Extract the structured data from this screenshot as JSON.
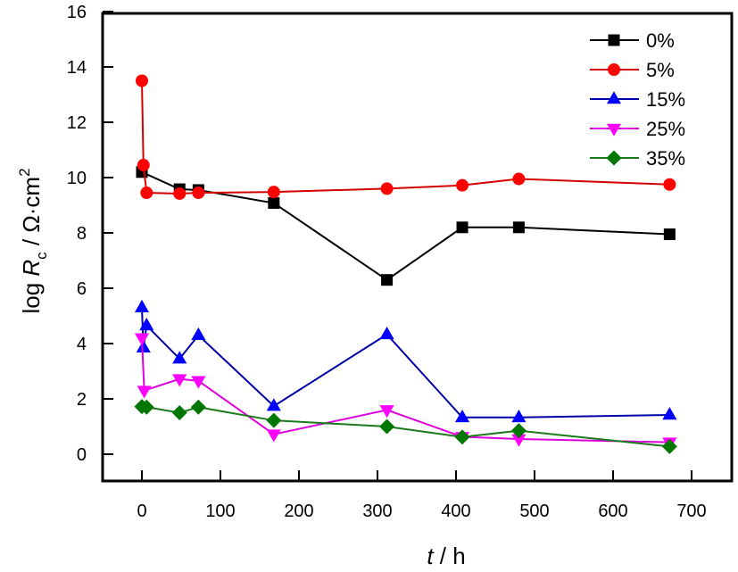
{
  "chart_data": {
    "type": "line",
    "title": "",
    "xlabel": "t / h",
    "xlabel_parts": {
      "var": "t",
      "rest": " / h"
    },
    "ylabel": "log Rc / Ω·cm²",
    "ylabel_parts": {
      "prefix": "log ",
      "var": "R",
      "sub": "c",
      "unit": " / Ω·cm",
      "sup": "2"
    },
    "xlim": [
      -50,
      750
    ],
    "ylim": [
      -1,
      16
    ],
    "xticks": [
      0,
      100,
      200,
      300,
      400,
      500,
      600,
      700
    ],
    "yticks": [
      0,
      2,
      4,
      6,
      8,
      10,
      12,
      14,
      16
    ],
    "grid": false,
    "legend_position": "top-right",
    "series": [
      {
        "name": "0%",
        "color": "#000000",
        "marker": "square",
        "points": [
          [
            0,
            10.2
          ],
          [
            48,
            9.58
          ],
          [
            72,
            9.55
          ],
          [
            168,
            9.08
          ],
          [
            312,
            6.3
          ],
          [
            408,
            8.2
          ],
          [
            480,
            8.2
          ],
          [
            672,
            7.95
          ]
        ]
      },
      {
        "name": "5%",
        "color": "#ff0000",
        "line_color": "#d40000",
        "marker": "circle",
        "points": [
          [
            0,
            13.5
          ],
          [
            2,
            10.45
          ],
          [
            6,
            9.45
          ],
          [
            48,
            9.42
          ],
          [
            72,
            9.45
          ],
          [
            168,
            9.48
          ],
          [
            312,
            9.6
          ],
          [
            408,
            9.72
          ],
          [
            480,
            9.95
          ],
          [
            672,
            9.75
          ]
        ]
      },
      {
        "name": "15%",
        "color": "#0000ff",
        "line_color": "#0000a8",
        "marker": "triangle-up",
        "points": [
          [
            0,
            5.3
          ],
          [
            2,
            3.85
          ],
          [
            6,
            4.65
          ],
          [
            48,
            3.45
          ],
          [
            72,
            4.3
          ],
          [
            168,
            1.74
          ],
          [
            312,
            4.33
          ],
          [
            408,
            1.33
          ],
          [
            480,
            1.33
          ],
          [
            672,
            1.42
          ]
        ]
      },
      {
        "name": "25%",
        "color": "#ff00ff",
        "line_color": "#e000e0",
        "marker": "triangle-down",
        "points": [
          [
            0,
            4.2
          ],
          [
            3,
            2.3
          ],
          [
            48,
            2.72
          ],
          [
            72,
            2.65
          ],
          [
            168,
            0.72
          ],
          [
            312,
            1.6
          ],
          [
            408,
            0.63
          ],
          [
            480,
            0.55
          ],
          [
            672,
            0.43
          ]
        ]
      },
      {
        "name": "35%",
        "color": "#007700",
        "line_color": "#1a7a1a",
        "marker": "diamond",
        "points": [
          [
            0,
            1.72
          ],
          [
            6,
            1.7
          ],
          [
            48,
            1.5
          ],
          [
            72,
            1.7
          ],
          [
            168,
            1.22
          ],
          [
            312,
            1.0
          ],
          [
            408,
            0.62
          ],
          [
            480,
            0.85
          ],
          [
            672,
            0.28
          ]
        ]
      }
    ]
  }
}
